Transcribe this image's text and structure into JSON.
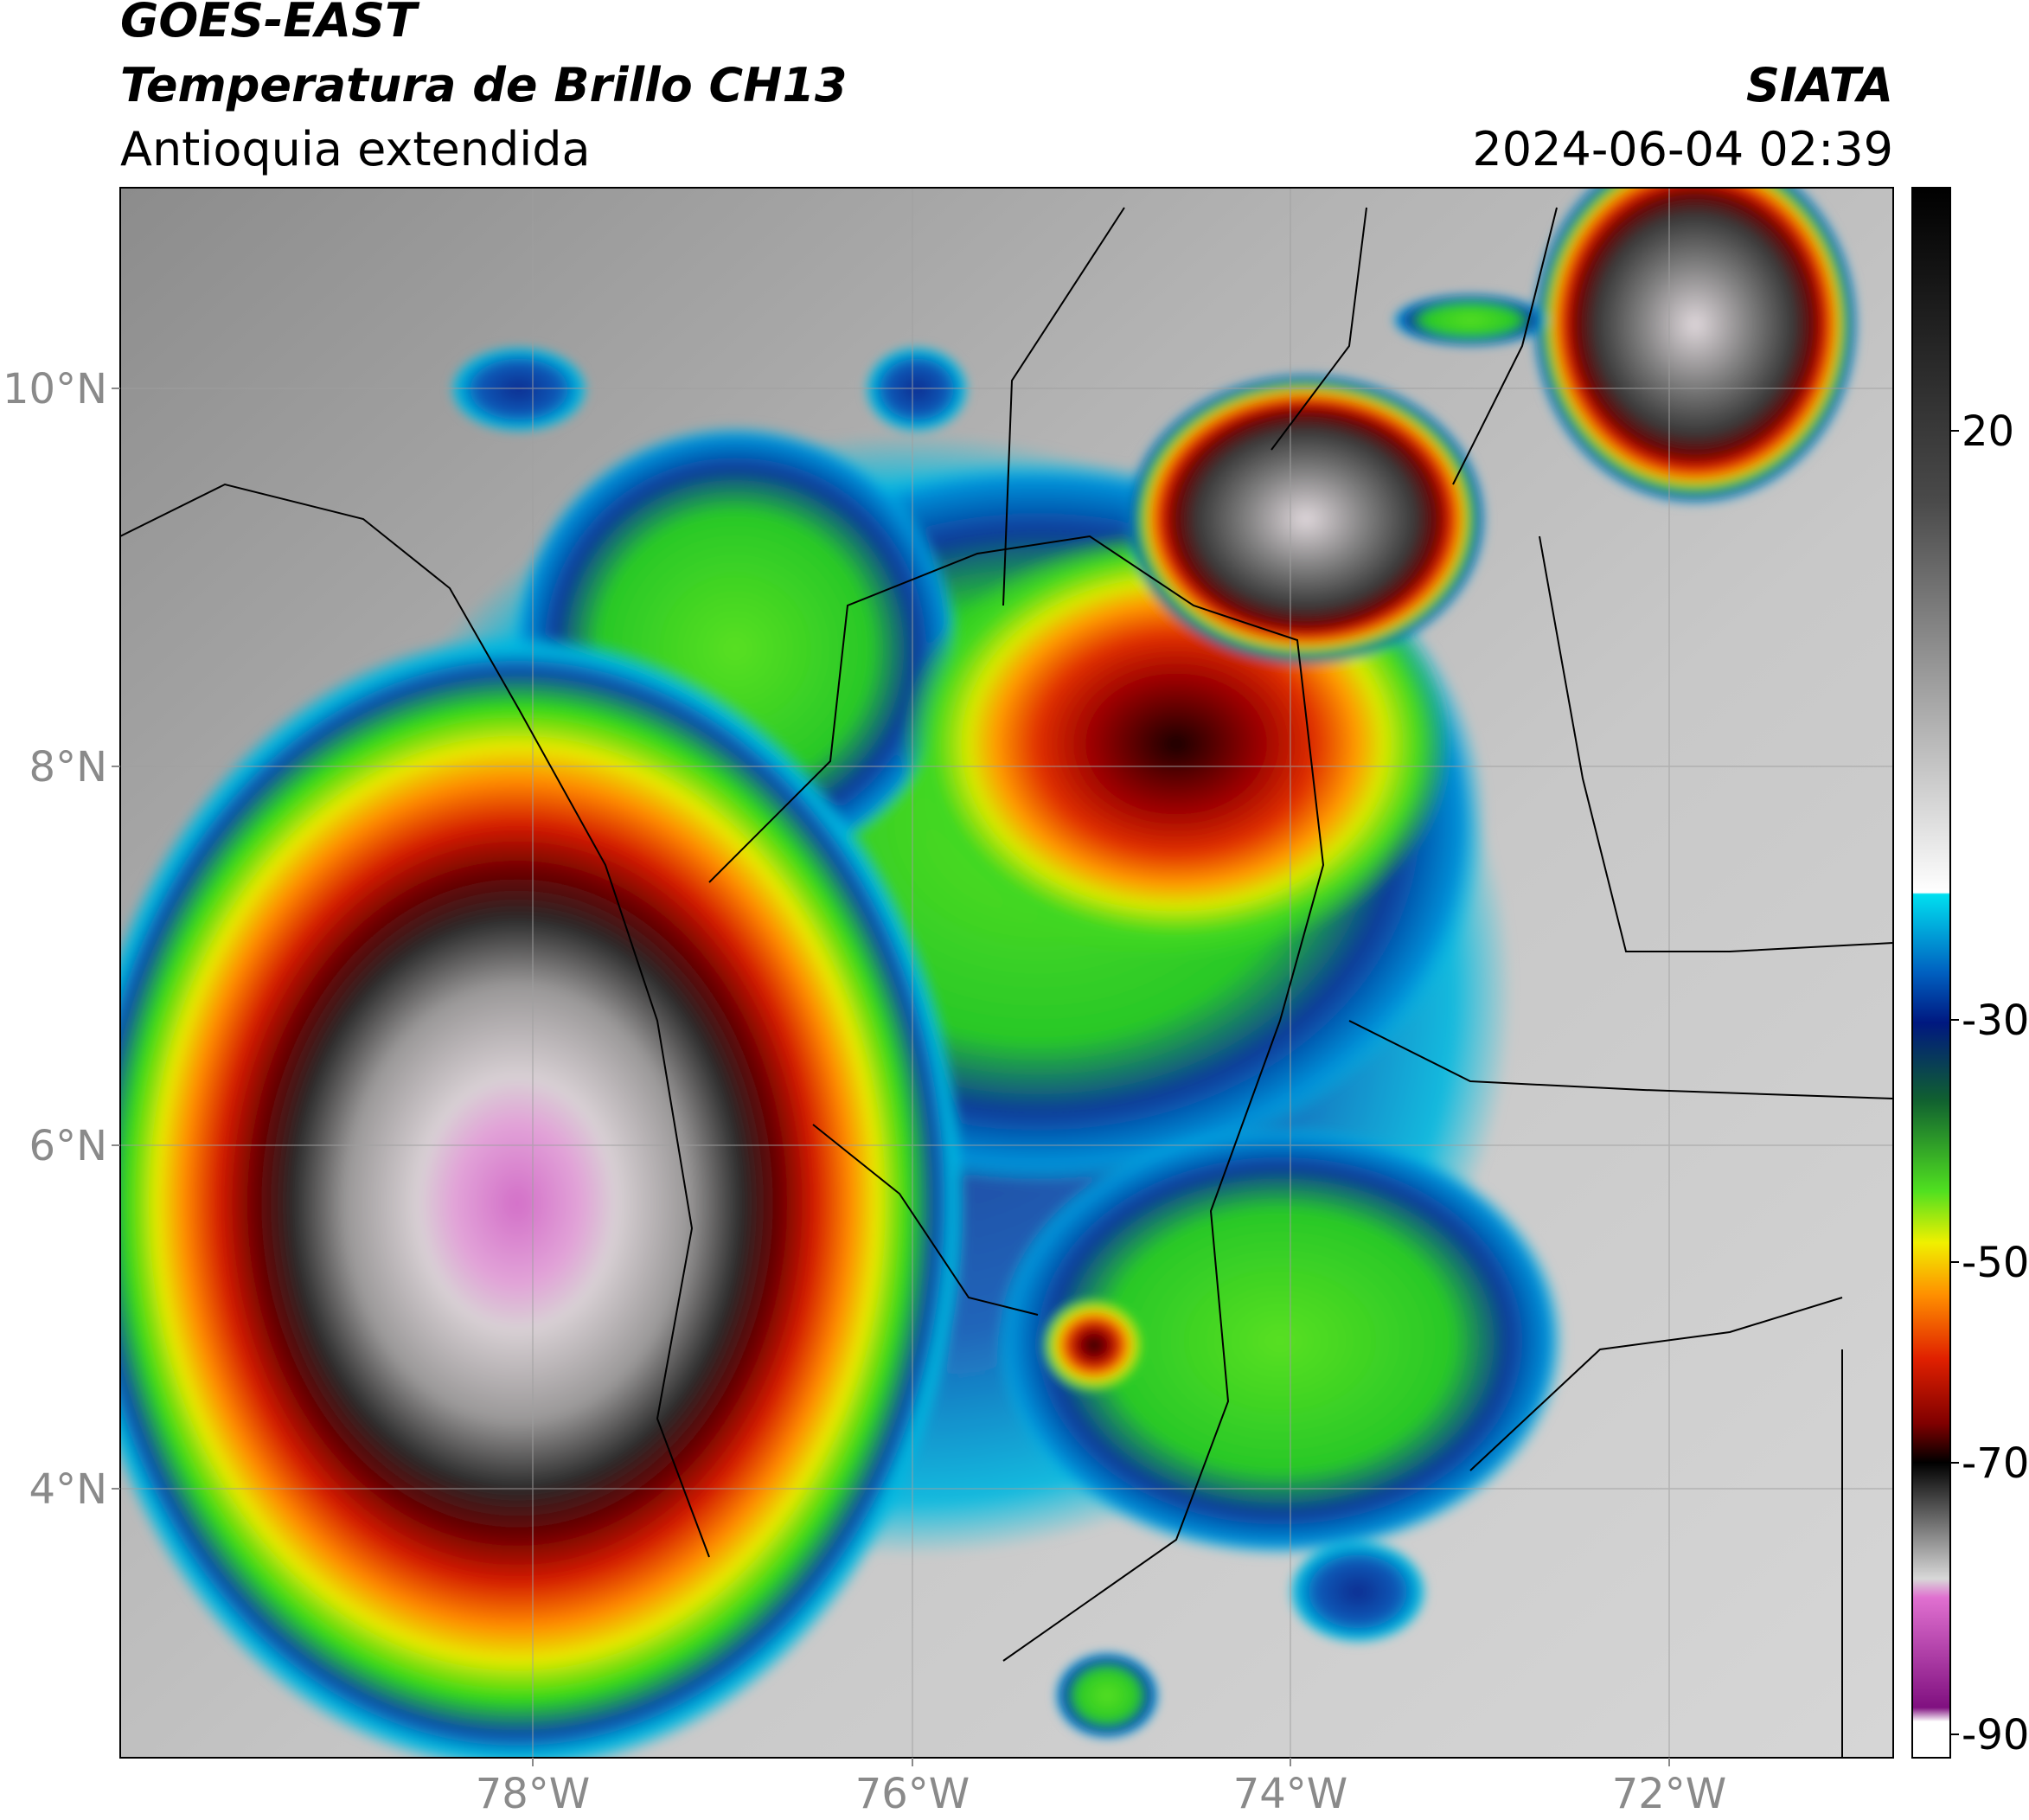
{
  "header": {
    "satellite": "GOES-EAST",
    "product": "Temperatura de Brillo CH13",
    "region": "Antioquia extendida",
    "source": "SIATA",
    "datetime": "2024-06-04 02:39"
  },
  "map": {
    "lon_labels": [
      "78°W",
      "76°W",
      "74°W",
      "72°W"
    ],
    "lat_labels": [
      "10°N",
      "8°N",
      "6°N",
      "4°N"
    ]
  },
  "colorbar": {
    "tick_labels": [
      "20",
      "-30",
      "-50",
      "-70",
      "-90"
    ]
  }
}
